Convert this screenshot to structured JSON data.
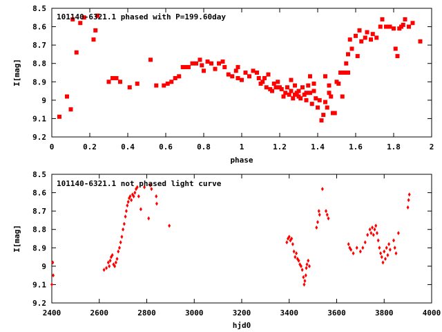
{
  "marker_color": "#ff0000",
  "chart_data": [
    {
      "type": "scatter",
      "title": "101140-6321.1 phased with P=199.60day",
      "xlabel": "phase",
      "ylabel": "I[mag]",
      "xlim": [
        0,
        2
      ],
      "ylim": [
        8.5,
        9.2
      ],
      "y_inverted": true,
      "grid": false,
      "xticks": [
        "0",
        "0.2",
        "0.4",
        "0.6",
        "0.8",
        "1",
        "1.2",
        "1.4",
        "1.6",
        "1.8",
        "2"
      ],
      "yticks": [
        "8.5",
        "8.6",
        "8.7",
        "8.8",
        "8.9",
        "9",
        "9.1",
        "9.2"
      ],
      "points": [
        [
          0.04,
          9.09
        ],
        [
          0.08,
          8.98
        ],
        [
          0.1,
          9.05
        ],
        [
          0.11,
          8.56
        ],
        [
          0.13,
          8.74
        ],
        [
          0.15,
          8.58
        ],
        [
          0.17,
          8.55
        ],
        [
          0.22,
          8.67
        ],
        [
          0.23,
          8.62
        ],
        [
          0.24,
          8.54
        ],
        [
          0.3,
          8.9
        ],
        [
          0.32,
          8.88
        ],
        [
          0.34,
          8.88
        ],
        [
          0.36,
          8.9
        ],
        [
          0.41,
          8.93
        ],
        [
          0.45,
          8.91
        ],
        [
          0.52,
          8.78
        ],
        [
          0.55,
          8.92
        ],
        [
          0.59,
          8.92
        ],
        [
          0.61,
          8.91
        ],
        [
          0.63,
          8.9
        ],
        [
          0.65,
          8.88
        ],
        [
          0.67,
          8.87
        ],
        [
          0.69,
          8.82
        ],
        [
          0.7,
          8.82
        ],
        [
          0.72,
          8.82
        ],
        [
          0.74,
          8.8
        ],
        [
          0.76,
          8.8
        ],
        [
          0.78,
          8.78
        ],
        [
          0.79,
          8.81
        ],
        [
          0.8,
          8.84
        ],
        [
          0.82,
          8.79
        ],
        [
          0.84,
          8.8
        ],
        [
          0.86,
          8.83
        ],
        [
          0.88,
          8.8
        ],
        [
          0.9,
          8.79
        ],
        [
          0.91,
          8.82
        ],
        [
          0.93,
          8.86
        ],
        [
          0.95,
          8.87
        ],
        [
          0.97,
          8.84
        ],
        [
          0.98,
          8.88
        ],
        [
          1.0,
          8.89
        ],
        [
          1.02,
          8.85
        ],
        [
          1.04,
          8.87
        ],
        [
          1.06,
          8.84
        ],
        [
          1.08,
          8.85
        ],
        [
          1.09,
          8.88
        ],
        [
          1.1,
          8.91
        ],
        [
          1.11,
          8.9
        ],
        [
          1.12,
          8.88
        ],
        [
          1.13,
          8.93
        ],
        [
          1.14,
          8.86
        ],
        [
          1.15,
          8.94
        ],
        [
          1.16,
          8.95
        ],
        [
          1.17,
          8.91
        ],
        [
          1.18,
          8.93
        ],
        [
          1.19,
          8.9
        ],
        [
          1.2,
          8.93
        ],
        [
          1.21,
          8.94
        ],
        [
          1.22,
          8.98
        ],
        [
          1.23,
          8.96
        ],
        [
          1.24,
          8.93
        ],
        [
          1.25,
          8.97
        ],
        [
          1.26,
          8.95
        ],
        [
          1.27,
          8.99
        ],
        [
          1.28,
          8.97
        ],
        [
          1.29,
          8.96
        ],
        [
          1.3,
          8.95
        ],
        [
          1.31,
          8.99
        ],
        [
          1.32,
          8.93
        ],
        [
          1.33,
          8.97
        ],
        [
          1.34,
          9.0
        ],
        [
          1.35,
          8.92
        ],
        [
          1.36,
          8.96
        ],
        [
          1.37,
          9.02
        ],
        [
          1.38,
          8.95
        ],
        [
          1.39,
          8.99
        ],
        [
          1.4,
          9.04
        ],
        [
          1.41,
          9.0
        ],
        [
          1.42,
          9.11
        ],
        [
          1.43,
          9.08
        ],
        [
          1.44,
          9.01
        ],
        [
          1.45,
          9.04
        ],
        [
          1.46,
          8.96
        ],
        [
          1.47,
          8.98
        ],
        [
          1.48,
          9.07
        ],
        [
          1.49,
          9.07
        ],
        [
          1.5,
          8.9
        ],
        [
          1.51,
          8.91
        ],
        [
          1.52,
          8.85
        ],
        [
          1.53,
          8.98
        ],
        [
          1.54,
          8.85
        ],
        [
          1.55,
          8.8
        ],
        [
          1.56,
          8.75
        ],
        [
          1.57,
          8.67
        ],
        [
          1.58,
          8.72
        ],
        [
          1.6,
          8.65
        ],
        [
          1.61,
          8.76
        ],
        [
          1.62,
          8.62
        ],
        [
          1.63,
          8.68
        ],
        [
          1.65,
          8.66
        ],
        [
          1.66,
          8.63
        ],
        [
          1.68,
          8.67
        ],
        [
          1.69,
          8.64
        ],
        [
          1.71,
          8.66
        ],
        [
          1.73,
          8.6
        ],
        [
          1.74,
          8.56
        ],
        [
          1.76,
          8.6
        ],
        [
          1.78,
          8.6
        ],
        [
          1.8,
          8.61
        ],
        [
          1.81,
          8.72
        ],
        [
          1.82,
          8.76
        ],
        [
          1.83,
          8.61
        ],
        [
          1.84,
          8.6
        ],
        [
          1.85,
          8.59
        ],
        [
          1.86,
          8.56
        ],
        [
          1.88,
          8.6
        ],
        [
          1.9,
          8.58
        ],
        [
          1.94,
          8.68
        ],
        [
          0.98,
          8.82
        ],
        [
          1.26,
          8.89
        ],
        [
          1.28,
          8.92
        ],
        [
          1.3,
          8.98
        ],
        [
          1.34,
          8.96
        ],
        [
          1.36,
          8.87
        ],
        [
          1.38,
          8.91
        ],
        [
          1.44,
          8.87
        ],
        [
          1.46,
          8.92
        ],
        [
          1.56,
          8.85
        ]
      ]
    },
    {
      "type": "scatter",
      "title": "101140-6321.1 not phased light curve",
      "xlabel": "hjd0",
      "ylabel": "I[mag]",
      "xlim": [
        2400,
        4000
      ],
      "ylim": [
        8.5,
        9.2
      ],
      "y_inverted": true,
      "grid": false,
      "xticks": [
        "2400",
        "2600",
        "2800",
        "3000",
        "3200",
        "3400",
        "3600",
        "3800",
        "4000"
      ],
      "yticks": [
        "8.5",
        "8.6",
        "8.7",
        "8.8",
        "8.9",
        "9",
        "9.1",
        "9.2"
      ],
      "points": [
        [
          2400,
          9.1
        ],
        [
          2404,
          8.98
        ],
        [
          2406,
          9.05
        ],
        [
          2620,
          9.02
        ],
        [
          2630,
          9.01
        ],
        [
          2638,
          8.98
        ],
        [
          2642,
          9.0
        ],
        [
          2646,
          8.97
        ],
        [
          2650,
          8.95
        ],
        [
          2655,
          8.94
        ],
        [
          2660,
          8.99
        ],
        [
          2665,
          9.0
        ],
        [
          2670,
          8.98
        ],
        [
          2675,
          8.96
        ],
        [
          2680,
          8.92
        ],
        [
          2685,
          8.9
        ],
        [
          2690,
          8.87
        ],
        [
          2695,
          8.84
        ],
        [
          2700,
          8.8
        ],
        [
          2705,
          8.77
        ],
        [
          2710,
          8.73
        ],
        [
          2714,
          8.7
        ],
        [
          2718,
          8.67
        ],
        [
          2722,
          8.65
        ],
        [
          2726,
          8.63
        ],
        [
          2730,
          8.62
        ],
        [
          2735,
          8.64
        ],
        [
          2740,
          8.61
        ],
        [
          2745,
          8.62
        ],
        [
          2750,
          8.6
        ],
        [
          2755,
          8.58
        ],
        [
          2760,
          8.57
        ],
        [
          2766,
          8.62
        ],
        [
          2775,
          8.69
        ],
        [
          2790,
          8.57
        ],
        [
          2808,
          8.74
        ],
        [
          2815,
          8.56
        ],
        [
          2820,
          8.58
        ],
        [
          2840,
          8.62
        ],
        [
          2842,
          8.66
        ],
        [
          2895,
          8.78
        ],
        [
          3390,
          8.87
        ],
        [
          3395,
          8.85
        ],
        [
          3400,
          8.84
        ],
        [
          3405,
          8.86
        ],
        [
          3410,
          8.85
        ],
        [
          3415,
          8.88
        ],
        [
          3420,
          8.92
        ],
        [
          3425,
          8.95
        ],
        [
          3430,
          8.93
        ],
        [
          3435,
          8.96
        ],
        [
          3440,
          8.97
        ],
        [
          3445,
          8.99
        ],
        [
          3450,
          9.0
        ],
        [
          3455,
          9.02
        ],
        [
          3460,
          9.06
        ],
        [
          3463,
          9.1
        ],
        [
          3466,
          9.08
        ],
        [
          3470,
          9.05
        ],
        [
          3472,
          9.01
        ],
        [
          3475,
          8.99
        ],
        [
          3480,
          8.97
        ],
        [
          3485,
          9.0
        ],
        [
          3515,
          8.79
        ],
        [
          3520,
          8.76
        ],
        [
          3525,
          8.7
        ],
        [
          3528,
          8.72
        ],
        [
          3540,
          8.58
        ],
        [
          3555,
          8.7
        ],
        [
          3560,
          8.72
        ],
        [
          3565,
          8.74
        ],
        [
          3650,
          8.88
        ],
        [
          3655,
          8.9
        ],
        [
          3660,
          8.91
        ],
        [
          3670,
          8.93
        ],
        [
          3685,
          8.9
        ],
        [
          3700,
          8.92
        ],
        [
          3710,
          8.9
        ],
        [
          3720,
          8.87
        ],
        [
          3730,
          8.83
        ],
        [
          3740,
          8.8
        ],
        [
          3745,
          8.82
        ],
        [
          3750,
          8.79
        ],
        [
          3755,
          8.83
        ],
        [
          3760,
          8.8
        ],
        [
          3765,
          8.78
        ],
        [
          3770,
          8.82
        ],
        [
          3775,
          8.86
        ],
        [
          3780,
          8.9
        ],
        [
          3785,
          8.93
        ],
        [
          3790,
          8.95
        ],
        [
          3795,
          8.98
        ],
        [
          3800,
          8.92
        ],
        [
          3805,
          8.96
        ],
        [
          3810,
          8.9
        ],
        [
          3815,
          8.94
        ],
        [
          3820,
          8.88
        ],
        [
          3825,
          8.91
        ],
        [
          3840,
          8.86
        ],
        [
          3845,
          8.9
        ],
        [
          3850,
          8.93
        ],
        [
          3860,
          8.82
        ],
        [
          3900,
          8.68
        ],
        [
          3903,
          8.64
        ],
        [
          3906,
          8.61
        ]
      ]
    }
  ]
}
